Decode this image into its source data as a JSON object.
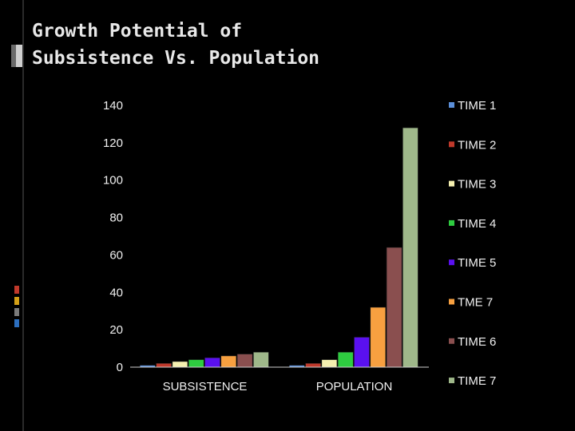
{
  "slide": {
    "title": "Growth Potential of\nSubsistence Vs. Population"
  },
  "chart_data": {
    "type": "bar",
    "categories": [
      "SUBSISTENCE",
      "POPULATION"
    ],
    "ylim": [
      0,
      140
    ],
    "yticks": [
      0,
      20,
      40,
      60,
      80,
      100,
      120,
      140
    ],
    "grid": false,
    "legend_position": "right",
    "series": [
      {
        "name": "TIME 1",
        "color": "#5b8fd9",
        "values": [
          1,
          1
        ]
      },
      {
        "name": "TIME 2",
        "color": "#c0392b",
        "values": [
          2,
          2
        ]
      },
      {
        "name": "TIME 3",
        "color": "#f5f0b0",
        "values": [
          3,
          4
        ]
      },
      {
        "name": "TIME 4",
        "color": "#2ecc40",
        "values": [
          4,
          8
        ]
      },
      {
        "name": "TIME 5",
        "color": "#5a10f0",
        "values": [
          5,
          16
        ]
      },
      {
        "name": "TME 7",
        "color": "#f7a040",
        "values": [
          6,
          32
        ]
      },
      {
        "name": "TIME 6",
        "color": "#8a4f4f",
        "values": [
          7,
          64
        ]
      },
      {
        "name": "TIME 7",
        "color": "#9fb88a",
        "values": [
          8,
          128
        ]
      }
    ]
  }
}
